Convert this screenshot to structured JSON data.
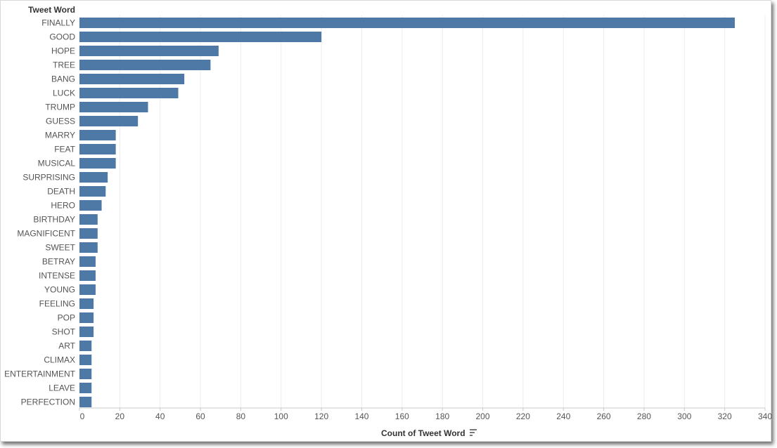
{
  "chart_data": {
    "type": "bar",
    "orientation": "horizontal",
    "row_header": "Tweet Word",
    "xlabel": "Count of Tweet Word",
    "sort_icon": "sort-descending-icon",
    "bar_color": "#4e79a7",
    "xlim": [
      0,
      340
    ],
    "xticks": [
      0,
      20,
      40,
      60,
      80,
      100,
      120,
      140,
      160,
      180,
      200,
      220,
      240,
      260,
      280,
      300,
      320,
      340
    ],
    "grid": true,
    "categories": [
      "FINALLY",
      "GOOD",
      "HOPE",
      "TREE",
      "BANG",
      "LUCK",
      "TRUMP",
      "GUESS",
      "MARRY",
      "FEAT",
      "MUSICAL",
      "SURPRISING",
      "DEATH",
      "HERO",
      "BIRTHDAY",
      "MAGNIFICENT",
      "SWEET",
      "BETRAY",
      "INTENSE",
      "YOUNG",
      "FEELING",
      "POP",
      "SHOT",
      "ART",
      "CLIMAX",
      "ENTERTAINMENT",
      "LEAVE",
      "PERFECTION"
    ],
    "values": [
      325,
      120,
      69,
      65,
      52,
      49,
      34,
      29,
      18,
      18,
      18,
      14,
      13,
      11,
      9,
      9,
      9,
      8,
      8,
      8,
      7,
      7,
      7,
      6,
      6,
      6,
      6,
      6
    ]
  }
}
